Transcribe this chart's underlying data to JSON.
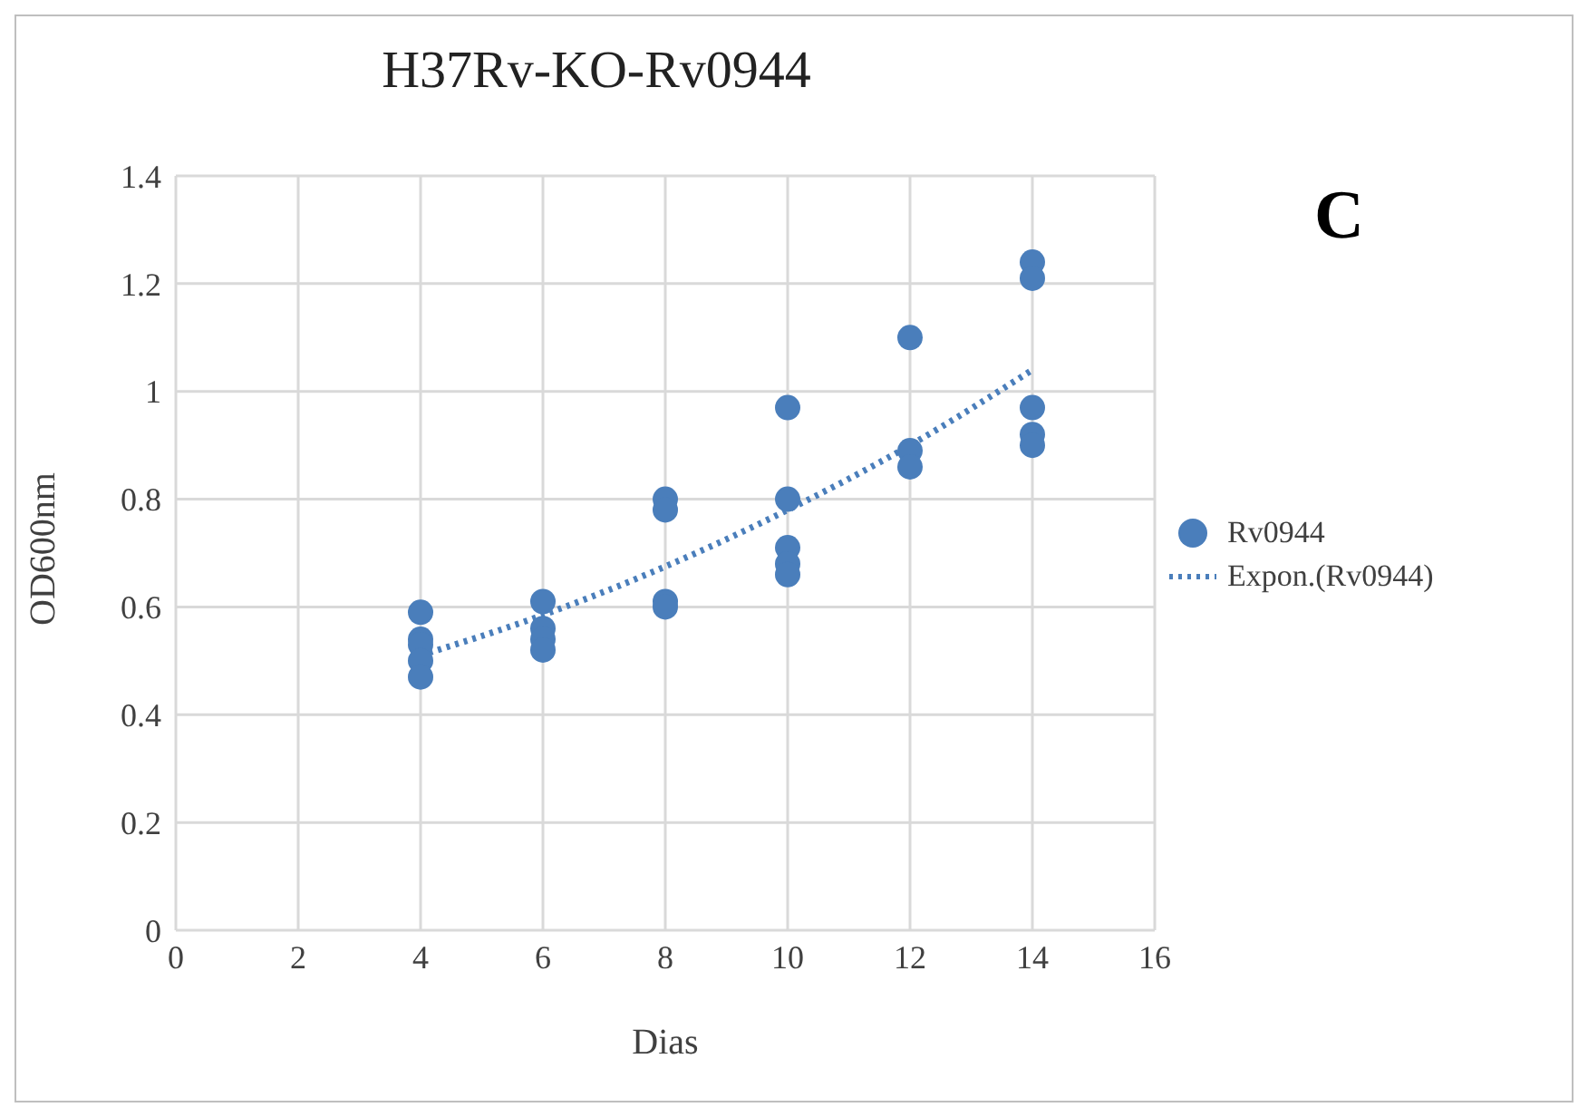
{
  "chart_data": {
    "type": "scatter",
    "title": "H37Rv-KO-Rv0944",
    "xlabel": "Dias",
    "ylabel": "OD600nm",
    "annotations": [
      "C"
    ],
    "xlim": [
      0,
      16
    ],
    "xticks": [
      0,
      2,
      4,
      6,
      8,
      10,
      12,
      14,
      16
    ],
    "ylim": [
      0,
      1.4
    ],
    "yticks": [
      0,
      0.2,
      0.4,
      0.6,
      0.8,
      1,
      1.2,
      1.4
    ],
    "grid": true,
    "legend": "right",
    "marker": "circle",
    "series": [
      {
        "name": "Rv0944",
        "color": "#4a7ebb",
        "x": [
          4,
          4,
          4,
          4,
          4,
          6,
          6,
          6,
          6,
          8,
          8,
          8,
          8,
          10,
          10,
          10,
          10,
          10,
          12,
          12,
          12,
          14,
          14,
          14,
          14,
          14
        ],
        "values": [
          0.59,
          0.54,
          0.53,
          0.5,
          0.47,
          0.61,
          0.56,
          0.54,
          0.52,
          0.8,
          0.78,
          0.61,
          0.6,
          0.97,
          0.8,
          0.71,
          0.68,
          0.66,
          1.1,
          0.89,
          0.86,
          1.24,
          1.21,
          0.97,
          0.92,
          0.9
        ]
      },
      {
        "name": "Expon.(Rv0944)",
        "type": "line",
        "color": "#4a7ebb",
        "line_style": "dotted",
        "marker": "none",
        "x": [
          4,
          6,
          8,
          10,
          12,
          14
        ],
        "values": [
          0.51,
          0.585,
          0.675,
          0.78,
          0.9,
          1.04
        ]
      }
    ]
  }
}
